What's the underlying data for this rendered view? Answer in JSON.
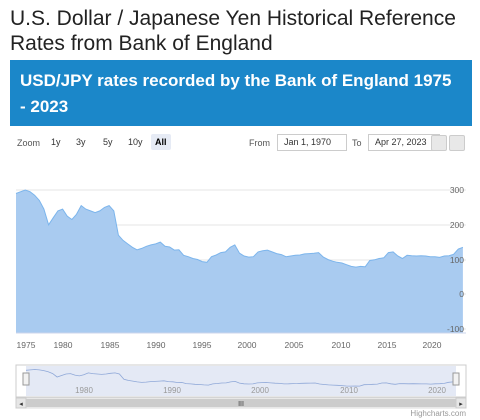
{
  "page": {
    "title": "U.S. Dollar / Japanese Yen Historical Reference Rates from Bank of England",
    "credit": "Highcharts.com"
  },
  "banner": {
    "title": "USD/JPY rates recorded by the Bank of England 1975 - 2023",
    "color": "#1b87c9"
  },
  "toolbar": {
    "zoom_label": "Zoom",
    "buttons": [
      "1y",
      "3y",
      "5y",
      "10y",
      "All"
    ],
    "active": "All",
    "from_label": "From",
    "from_value": "Jan 1, 1970",
    "to_label": "To",
    "to_value": "Apr 27, 2023"
  },
  "chart_data": {
    "type": "area",
    "x_ticks": [
      "1975",
      "1980",
      "1985",
      "1990",
      "1995",
      "2000",
      "2005",
      "2010",
      "2015",
      "2020"
    ],
    "y_ticks": [
      "300",
      "200",
      "100",
      "0",
      "-100"
    ],
    "ylim": [
      -100,
      300
    ],
    "xlim": [
      1975,
      2023.33
    ],
    "navigator_ticks": [
      "1980",
      "1990",
      "2000",
      "2010",
      "2020"
    ],
    "navigator_scroll_label": "III",
    "fill_color": "#a9cbf0",
    "line_color": "#7cb5ec",
    "x": [
      1975,
      1975.5,
      1976,
      1976.5,
      1977,
      1977.5,
      1978,
      1978.5,
      1979,
      1979.5,
      1980,
      1980.5,
      1981,
      1981.5,
      1982,
      1982.5,
      1983,
      1983.5,
      1984,
      1984.5,
      1985,
      1985.5,
      1986,
      1986.5,
      1987,
      1987.5,
      1988,
      1988.5,
      1989,
      1989.5,
      1990,
      1990.5,
      1991,
      1991.5,
      1992,
      1992.5,
      1993,
      1993.5,
      1994,
      1994.5,
      1995,
      1995.5,
      1996,
      1996.5,
      1997,
      1997.5,
      1998,
      1998.5,
      1999,
      1999.5,
      2000,
      2000.5,
      2001,
      2001.5,
      2002,
      2002.5,
      2003,
      2003.5,
      2004,
      2004.5,
      2005,
      2005.5,
      2006,
      2006.5,
      2007,
      2007.5,
      2008,
      2008.5,
      2009,
      2009.5,
      2010,
      2010.5,
      2011,
      2011.5,
      2012,
      2012.5,
      2013,
      2013.5,
      2014,
      2014.5,
      2015,
      2015.5,
      2016,
      2016.5,
      2017,
      2017.5,
      2018,
      2018.5,
      2019,
      2019.5,
      2020,
      2020.5,
      2021,
      2021.5,
      2022,
      2022.5,
      2023
    ],
    "y": [
      290,
      295,
      300,
      295,
      285,
      270,
      245,
      200,
      220,
      240,
      245,
      225,
      215,
      230,
      255,
      245,
      240,
      235,
      240,
      250,
      255,
      240,
      170,
      155,
      145,
      135,
      128,
      132,
      138,
      142,
      145,
      150,
      138,
      136,
      127,
      128,
      112,
      108,
      103,
      100,
      94,
      92,
      108,
      113,
      120,
      122,
      135,
      142,
      118,
      110,
      107,
      108,
      122,
      125,
      127,
      122,
      117,
      114,
      108,
      110,
      112,
      113,
      116,
      117,
      118,
      120,
      107,
      100,
      95,
      92,
      90,
      85,
      80,
      78,
      80,
      79,
      97,
      99,
      103,
      105,
      120,
      122,
      110,
      103,
      112,
      111,
      110,
      111,
      110,
      108,
      108,
      106,
      110,
      111,
      115,
      130,
      135
    ]
  }
}
